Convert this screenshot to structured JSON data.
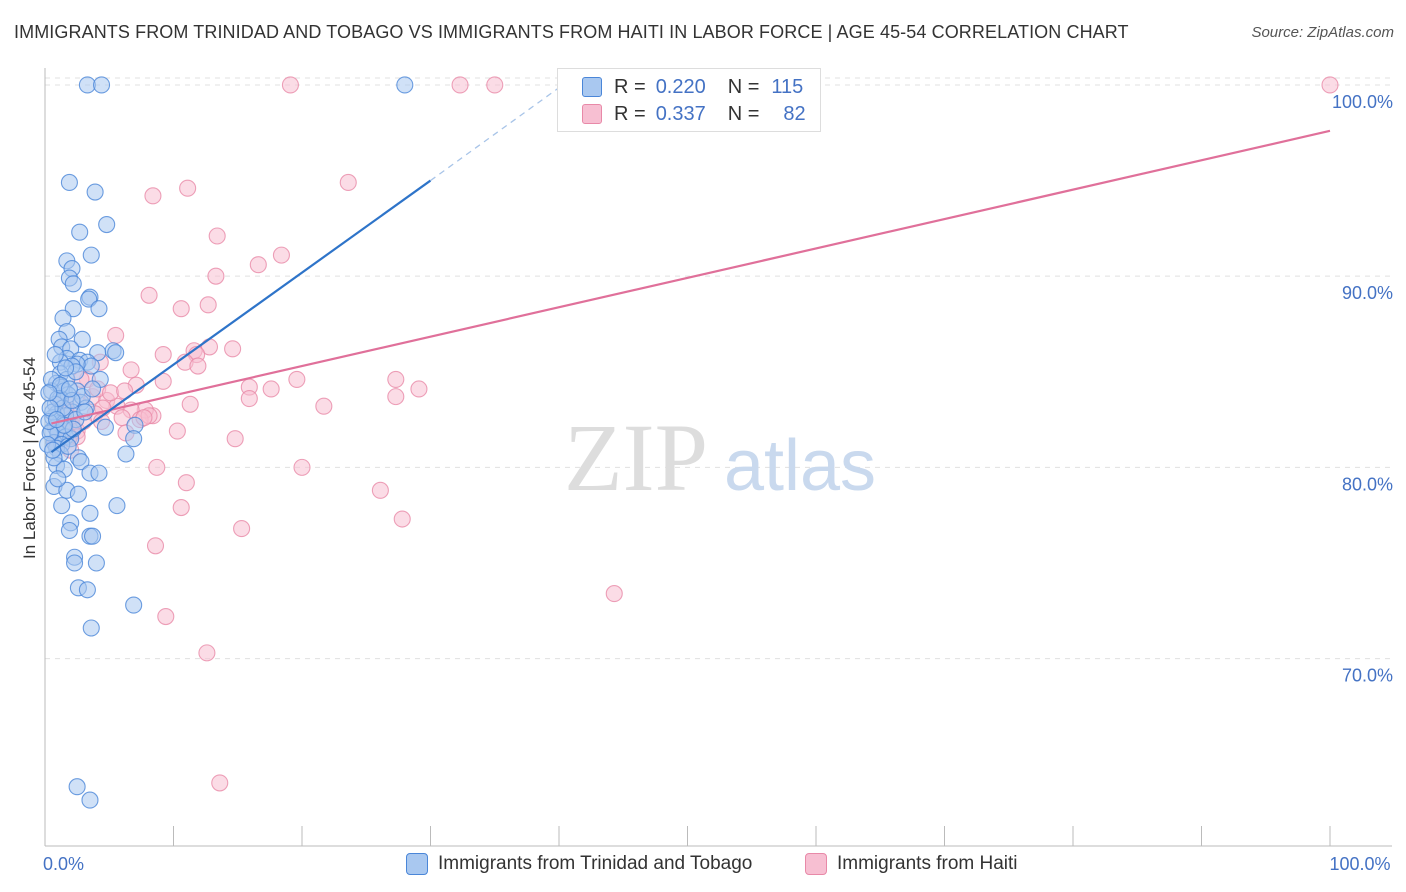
{
  "title": "IMMIGRANTS FROM TRINIDAD AND TOBAGO VS IMMIGRANTS FROM HAITI IN LABOR FORCE | AGE 45-54 CORRELATION CHART",
  "source": "Source: ZipAtlas.com",
  "watermark": {
    "zip": "ZIP",
    "atlas": "atlas"
  },
  "legend": {
    "r_label": "R =",
    "n_label": "N =",
    "series1": {
      "r": "0.220",
      "n": "115"
    },
    "series2": {
      "r": "0.337",
      "n": "82"
    }
  },
  "bottom_legend": {
    "series1": "Immigrants from Trinidad and Tobago",
    "series2": "Immigrants from Haiti"
  },
  "colors": {
    "series1_fill": "#a9c8f0",
    "series1_stroke": "#4a86d8",
    "series1_line": "#2e74c9",
    "series2_fill": "#f7bfd2",
    "series2_stroke": "#e889a8",
    "series2_line": "#e0709a",
    "tick": "#4472C4",
    "grid": "#e0e0e0"
  },
  "chart_data": {
    "type": "scatter",
    "title": "IMMIGRANTS FROM TRINIDAD AND TOBAGO VS IMMIGRANTS FROM HAITI IN LABOR FORCE | AGE 45-54 CORRELATION CHART",
    "xlabel": "",
    "ylabel": "In Labor Force | Age 45-54",
    "xlim": [
      0,
      100
    ],
    "ylim": [
      60.2,
      101.2
    ],
    "x_tick_labels": [
      {
        "value": 0,
        "label": "0.0%"
      },
      {
        "value": 100,
        "label": "100.0%"
      }
    ],
    "y_ticks": [
      {
        "value": 70,
        "label": "70.0%"
      },
      {
        "value": 80,
        "label": "80.0%"
      },
      {
        "value": 90,
        "label": "90.0%"
      },
      {
        "value": 100,
        "label": "100.0%"
      }
    ],
    "series": [
      {
        "name": "Immigrants from Trinidad and Tobago",
        "r": 0.22,
        "n": 115,
        "trend": {
          "x0": 0.5,
          "y0": 80.8,
          "x1": 30,
          "y1": 95.0,
          "dash_x1": 40.5,
          "dash_y1": 100.1
        },
        "points": [
          [
            3.3,
            100
          ],
          [
            4.4,
            100
          ],
          [
            28,
            100
          ],
          [
            1.9,
            94.9
          ],
          [
            3.9,
            94.4
          ],
          [
            4.8,
            92.7
          ],
          [
            2.7,
            92.3
          ],
          [
            3.6,
            91.1
          ],
          [
            1.7,
            90.8
          ],
          [
            2.1,
            90.4
          ],
          [
            1.9,
            89.9
          ],
          [
            2.2,
            89.6
          ],
          [
            3.5,
            88.9
          ],
          [
            3.4,
            88.8
          ],
          [
            2.2,
            88.3
          ],
          [
            4.2,
            88.3
          ],
          [
            1.4,
            87.8
          ],
          [
            1.7,
            87.1
          ],
          [
            1.1,
            86.7
          ],
          [
            2.9,
            86.7
          ],
          [
            1.3,
            86.3
          ],
          [
            2.0,
            86.2
          ],
          [
            5.3,
            86.1
          ],
          [
            5.5,
            86.0
          ],
          [
            4.1,
            86.0
          ],
          [
            1.7,
            85.7
          ],
          [
            2.7,
            85.6
          ],
          [
            1.2,
            85.5
          ],
          [
            3.3,
            85.5
          ],
          [
            3.6,
            85.3
          ],
          [
            2.5,
            85.4
          ],
          [
            2.1,
            85.3
          ],
          [
            1.2,
            84.9
          ],
          [
            1.7,
            84.6
          ],
          [
            4.3,
            84.6
          ],
          [
            0.9,
            84.4
          ],
          [
            1.3,
            84.2
          ],
          [
            0.5,
            84.0
          ],
          [
            1.5,
            84.0
          ],
          [
            2.5,
            84.0
          ],
          [
            1.8,
            83.8
          ],
          [
            1.2,
            83.6
          ],
          [
            2.8,
            83.4
          ],
          [
            0.8,
            83.3
          ],
          [
            3.2,
            83.1
          ],
          [
            2.1,
            82.9
          ],
          [
            0.9,
            82.8
          ],
          [
            1.6,
            82.7
          ],
          [
            0.6,
            82.6
          ],
          [
            2.4,
            82.5
          ],
          [
            1.1,
            82.3
          ],
          [
            0.8,
            82.1
          ],
          [
            4.7,
            82.1
          ],
          [
            7.0,
            82.2
          ],
          [
            1.5,
            82.0
          ],
          [
            0.5,
            81.9
          ],
          [
            1.0,
            81.8
          ],
          [
            1.6,
            81.6
          ],
          [
            2.0,
            81.5
          ],
          [
            0.7,
            81.3
          ],
          [
            1.3,
            81.2
          ],
          [
            6.9,
            81.5
          ],
          [
            0.9,
            81.0
          ],
          [
            1.2,
            80.7
          ],
          [
            2.6,
            80.5
          ],
          [
            2.8,
            80.3
          ],
          [
            6.3,
            80.7
          ],
          [
            0.9,
            80.1
          ],
          [
            1.5,
            79.9
          ],
          [
            3.5,
            79.7
          ],
          [
            4.2,
            79.7
          ],
          [
            0.7,
            79.0
          ],
          [
            1.7,
            78.8
          ],
          [
            2.6,
            78.6
          ],
          [
            1.3,
            78.0
          ],
          [
            5.6,
            78.0
          ],
          [
            3.5,
            77.6
          ],
          [
            2.0,
            77.1
          ],
          [
            1.9,
            76.7
          ],
          [
            3.5,
            76.4
          ],
          [
            3.7,
            76.4
          ],
          [
            2.3,
            75.3
          ],
          [
            2.3,
            75.0
          ],
          [
            4.0,
            75.0
          ],
          [
            2.6,
            73.7
          ],
          [
            3.3,
            73.6
          ],
          [
            6.9,
            72.8
          ],
          [
            3.6,
            71.6
          ],
          [
            2.5,
            63.3
          ],
          [
            3.5,
            62.6
          ],
          [
            0.4,
            81.8
          ],
          [
            0.6,
            82.9
          ],
          [
            1.4,
            83.1
          ],
          [
            0.3,
            82.4
          ],
          [
            2.2,
            82.0
          ],
          [
            0.7,
            80.5
          ],
          [
            1.0,
            79.4
          ],
          [
            2.9,
            83.7
          ],
          [
            3.7,
            84.1
          ],
          [
            0.5,
            84.6
          ],
          [
            1.8,
            81.1
          ],
          [
            1.0,
            83.6
          ],
          [
            0.4,
            83.1
          ],
          [
            2.4,
            85.0
          ],
          [
            0.8,
            85.9
          ],
          [
            1.5,
            82.2
          ],
          [
            0.2,
            81.2
          ],
          [
            1.2,
            84.3
          ],
          [
            3.1,
            82.9
          ],
          [
            2.1,
            83.5
          ],
          [
            0.6,
            80.9
          ],
          [
            1.6,
            85.2
          ],
          [
            0.9,
            82.5
          ],
          [
            1.9,
            84.1
          ],
          [
            0.3,
            83.9
          ]
        ]
      },
      {
        "name": "Immigrants from Haiti",
        "r": 0.337,
        "n": 82,
        "trend": {
          "x0": 0.5,
          "y0": 82.3,
          "x1": 100,
          "y1": 97.6
        },
        "points": [
          [
            19.1,
            100
          ],
          [
            32.3,
            100
          ],
          [
            35.0,
            100
          ],
          [
            100,
            100
          ],
          [
            23.6,
            94.9
          ],
          [
            8.4,
            94.2
          ],
          [
            11.1,
            94.6
          ],
          [
            13.4,
            92.1
          ],
          [
            18.4,
            91.1
          ],
          [
            16.6,
            90.6
          ],
          [
            13.3,
            90.0
          ],
          [
            8.1,
            89.0
          ],
          [
            10.6,
            88.3
          ],
          [
            12.7,
            88.5
          ],
          [
            5.5,
            86.9
          ],
          [
            12.8,
            86.3
          ],
          [
            14.6,
            86.2
          ],
          [
            9.2,
            85.9
          ],
          [
            11.6,
            86.1
          ],
          [
            11.8,
            85.9
          ],
          [
            10.9,
            85.5
          ],
          [
            11.9,
            85.3
          ],
          [
            6.7,
            85.1
          ],
          [
            4.3,
            85.5
          ],
          [
            3.3,
            84.6
          ],
          [
            9.2,
            84.5
          ],
          [
            7.1,
            84.3
          ],
          [
            19.6,
            84.6
          ],
          [
            27.3,
            84.6
          ],
          [
            29.1,
            84.1
          ],
          [
            15.9,
            84.2
          ],
          [
            17.6,
            84.1
          ],
          [
            15.9,
            83.6
          ],
          [
            3.7,
            83.7
          ],
          [
            2.4,
            83.5
          ],
          [
            4.8,
            83.5
          ],
          [
            11.3,
            83.3
          ],
          [
            5.6,
            83.2
          ],
          [
            8.4,
            82.7
          ],
          [
            4.5,
            83.1
          ],
          [
            21.7,
            83.2
          ],
          [
            27.3,
            83.7
          ],
          [
            7.8,
            83.0
          ],
          [
            6.7,
            83.0
          ],
          [
            3.9,
            82.8
          ],
          [
            2.1,
            82.6
          ],
          [
            6.0,
            82.6
          ],
          [
            7.4,
            82.5
          ],
          [
            8.1,
            82.7
          ],
          [
            4.4,
            82.4
          ],
          [
            2.1,
            82.2
          ],
          [
            1.6,
            82.1
          ],
          [
            2.5,
            81.9
          ],
          [
            6.3,
            81.8
          ],
          [
            10.3,
            81.9
          ],
          [
            0.9,
            82.0
          ],
          [
            2.5,
            81.6
          ],
          [
            14.8,
            81.5
          ],
          [
            1.9,
            81.6
          ],
          [
            1.3,
            81.4
          ],
          [
            0.8,
            81.2
          ],
          [
            2.0,
            80.9
          ],
          [
            8.7,
            80.0
          ],
          [
            20.0,
            80.0
          ],
          [
            11.0,
            79.2
          ],
          [
            26.1,
            78.8
          ],
          [
            10.6,
            77.9
          ],
          [
            27.8,
            77.3
          ],
          [
            15.3,
            76.8
          ],
          [
            8.6,
            75.9
          ],
          [
            44.3,
            73.4
          ],
          [
            9.4,
            72.2
          ],
          [
            12.6,
            70.3
          ],
          [
            13.6,
            63.5
          ],
          [
            4.1,
            84.1
          ],
          [
            1.2,
            83.4
          ],
          [
            3.0,
            82.4
          ],
          [
            5.1,
            83.9
          ],
          [
            7.7,
            82.6
          ],
          [
            2.8,
            84.6
          ],
          [
            6.2,
            84.0
          ],
          [
            1.6,
            83.0
          ]
        ]
      }
    ]
  }
}
